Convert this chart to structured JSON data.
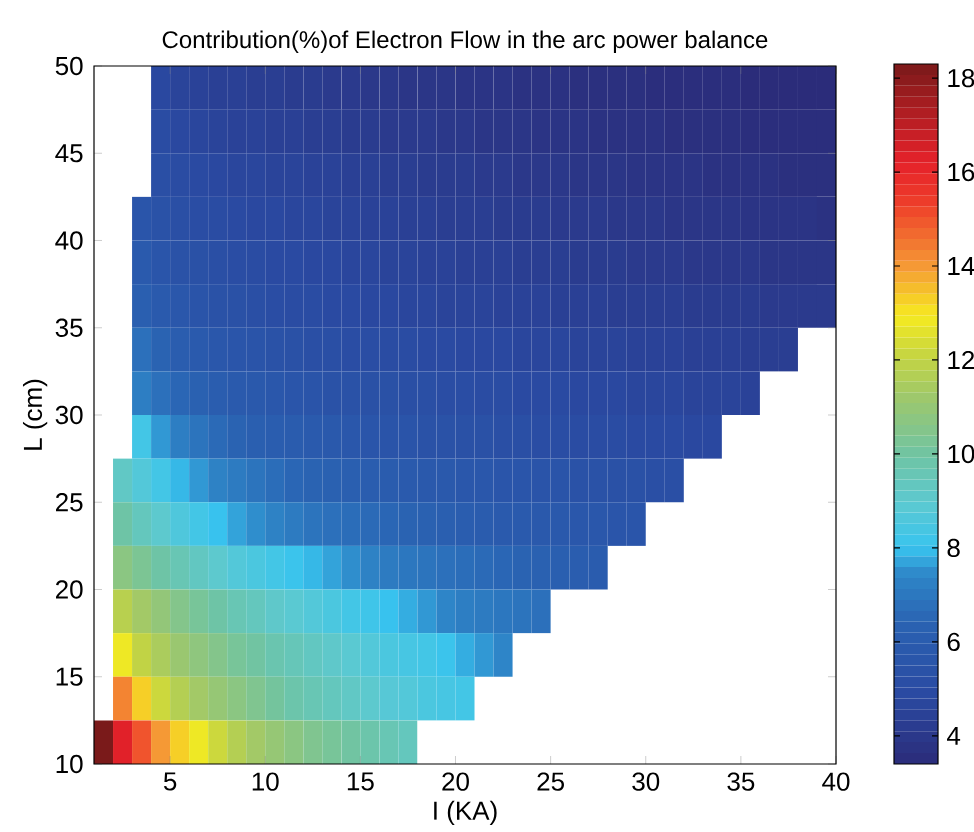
{
  "chart_data": {
    "type": "heatmap",
    "title": "Contribution(%)of Electron Flow in the arc power balance",
    "xlabel": "I (KA)",
    "ylabel": "L (cm)",
    "cells": [
      [
        null,
        null,
        null,
        4.8,
        4.6,
        4.5,
        4.4,
        4.4,
        4.3,
        4.3,
        4.2,
        4.2,
        4.1,
        4.1,
        4.0,
        4.0,
        3.9,
        3.9,
        3.9,
        3.8,
        3.8,
        3.8,
        3.7,
        3.7,
        3.7,
        3.6,
        3.6,
        3.6,
        3.6,
        3.5,
        3.5,
        3.5,
        3.5,
        3.5,
        3.4,
        3.4,
        3.4,
        3.4,
        3.4
      ],
      [
        null,
        null,
        null,
        5.0,
        4.8,
        4.7,
        4.6,
        4.5,
        4.5,
        4.4,
        4.4,
        4.3,
        4.3,
        4.2,
        4.2,
        4.1,
        4.1,
        4.1,
        4.0,
        4.0,
        3.9,
        3.9,
        3.9,
        3.8,
        3.8,
        3.8,
        3.7,
        3.7,
        3.7,
        3.7,
        3.6,
        3.6,
        3.6,
        3.6,
        3.5,
        3.5,
        3.5,
        3.5,
        3.5
      ],
      [
        null,
        null,
        null,
        5.2,
        5.0,
        4.9,
        4.8,
        4.7,
        4.7,
        4.6,
        4.6,
        4.5,
        4.5,
        4.4,
        4.4,
        4.3,
        4.3,
        4.2,
        4.2,
        4.2,
        4.1,
        4.1,
        4.0,
        4.0,
        4.0,
        3.9,
        3.9,
        3.9,
        3.8,
        3.8,
        3.8,
        3.8,
        3.7,
        3.7,
        3.7,
        3.7,
        3.6,
        3.6,
        3.6
      ],
      [
        null,
        null,
        5.6,
        5.4,
        5.2,
        5.1,
        5.0,
        4.9,
        4.8,
        4.8,
        4.7,
        4.7,
        4.6,
        4.6,
        4.5,
        4.5,
        4.4,
        4.4,
        4.3,
        4.3,
        4.3,
        4.2,
        4.2,
        4.2,
        4.1,
        4.1,
        4.1,
        4.0,
        4.0,
        4.0,
        3.9,
        3.9,
        3.9,
        3.9,
        3.8,
        3.8,
        3.8,
        3.8,
        3.7
      ],
      [
        null,
        null,
        5.9,
        5.6,
        5.4,
        5.3,
        5.2,
        5.1,
        5.0,
        4.9,
        4.9,
        4.8,
        4.8,
        4.7,
        4.7,
        4.6,
        4.6,
        4.5,
        4.5,
        4.4,
        4.4,
        4.4,
        4.3,
        4.3,
        4.3,
        4.2,
        4.2,
        4.2,
        4.1,
        4.1,
        4.1,
        4.0,
        4.0,
        4.0,
        4.0,
        3.9,
        3.9,
        3.9,
        3.9
      ],
      [
        null,
        null,
        6.2,
        5.9,
        5.7,
        5.5,
        5.4,
        5.3,
        5.2,
        5.1,
        5.0,
        5.0,
        4.9,
        4.9,
        4.8,
        4.8,
        4.7,
        4.7,
        4.6,
        4.6,
        4.6,
        4.5,
        4.5,
        4.5,
        4.4,
        4.4,
        4.4,
        4.3,
        4.3,
        4.3,
        4.3,
        4.2,
        4.2,
        4.2,
        4.2,
        4.1,
        4.1,
        4.1,
        4.1
      ],
      [
        null,
        null,
        6.8,
        6.4,
        6.1,
        5.9,
        5.7,
        5.6,
        5.5,
        5.4,
        5.3,
        5.2,
        5.2,
        5.1,
        5.1,
        5.0,
        5.0,
        4.9,
        4.9,
        4.8,
        4.8,
        4.8,
        4.7,
        4.7,
        4.7,
        4.6,
        4.6,
        4.6,
        4.5,
        4.5,
        4.5,
        4.4,
        4.4,
        4.4,
        4.3,
        4.3,
        4.3,
        null,
        null
      ],
      [
        null,
        null,
        7.2,
        6.8,
        6.5,
        6.3,
        6.1,
        5.9,
        5.8,
        5.7,
        5.6,
        5.5,
        5.4,
        5.4,
        5.3,
        5.3,
        5.2,
        5.2,
        5.1,
        5.1,
        5.0,
        5.0,
        4.9,
        4.9,
        4.9,
        4.8,
        4.8,
        4.8,
        4.7,
        4.7,
        4.7,
        4.6,
        4.6,
        4.6,
        4.5,
        null,
        null,
        null,
        null
      ],
      [
        null,
        null,
        8.3,
        7.6,
        7.2,
        6.9,
        6.6,
        6.4,
        6.2,
        6.1,
        6.0,
        5.9,
        5.8,
        5.7,
        5.6,
        5.5,
        5.5,
        5.4,
        5.4,
        5.3,
        5.3,
        5.2,
        5.2,
        5.1,
        5.1,
        5.0,
        5.0,
        5.0,
        4.9,
        4.9,
        4.9,
        4.8,
        4.8,
        null,
        null,
        null,
        null,
        null,
        null
      ],
      [
        null,
        9.2,
        8.7,
        8.3,
        7.9,
        7.6,
        7.3,
        7.1,
        6.9,
        6.7,
        6.5,
        6.4,
        6.3,
        6.2,
        6.1,
        6.0,
        5.9,
        5.8,
        5.8,
        5.7,
        5.7,
        5.6,
        5.6,
        5.5,
        5.5,
        5.4,
        5.4,
        5.3,
        5.3,
        5.2,
        5.2,
        null,
        null,
        null,
        null,
        null,
        null,
        null,
        null
      ],
      [
        null,
        9.9,
        9.4,
        9.0,
        8.6,
        8.3,
        8.0,
        7.7,
        7.5,
        7.3,
        7.1,
        6.9,
        6.8,
        6.7,
        6.6,
        6.5,
        6.4,
        6.3,
        6.2,
        6.1,
        6.0,
        5.9,
        5.9,
        5.8,
        5.8,
        5.7,
        5.7,
        5.6,
        5.6,
        null,
        null,
        null,
        null,
        null,
        null,
        null,
        null,
        null,
        null
      ],
      [
        null,
        10.7,
        10.3,
        9.9,
        9.6,
        9.3,
        9.0,
        8.7,
        8.5,
        8.3,
        8.1,
        7.9,
        7.7,
        7.5,
        7.3,
        7.1,
        7.0,
        6.9,
        6.8,
        6.7,
        6.6,
        6.5,
        6.4,
        6.3,
        6.2,
        6.1,
        6.0,
        null,
        null,
        null,
        null,
        null,
        null,
        null,
        null,
        null,
        null,
        null,
        null
      ],
      [
        null,
        11.8,
        11.3,
        10.9,
        10.5,
        10.2,
        9.9,
        9.6,
        9.4,
        9.1,
        8.9,
        8.7,
        8.5,
        8.3,
        8.2,
        8.0,
        7.8,
        7.6,
        7.4,
        7.2,
        7.1,
        7.0,
        6.9,
        6.8,
        null,
        null,
        null,
        null,
        null,
        null,
        null,
        null,
        null,
        null,
        null,
        null,
        null,
        null,
        null
      ],
      [
        null,
        12.8,
        12.0,
        11.5,
        11.1,
        10.8,
        10.5,
        10.2,
        10.0,
        9.7,
        9.5,
        9.3,
        9.1,
        8.9,
        8.7,
        8.5,
        8.4,
        8.3,
        8.1,
        7.8,
        7.6,
        7.4,
        null,
        null,
        null,
        null,
        null,
        null,
        null,
        null,
        null,
        null,
        null,
        null,
        null,
        null,
        null,
        null,
        null
      ],
      [
        null,
        14.3,
        13.3,
        12.2,
        11.7,
        11.3,
        11.0,
        10.7,
        10.4,
        10.1,
        9.8,
        9.6,
        9.4,
        9.2,
        9.0,
        8.8,
        8.7,
        8.5,
        8.4,
        8.3,
        null,
        null,
        null,
        null,
        null,
        null,
        null,
        null,
        null,
        null,
        null,
        null,
        null,
        null,
        null,
        null,
        null,
        null,
        null
      ],
      [
        18.3,
        16.3,
        15.0,
        14.0,
        13.3,
        12.8,
        12.2,
        11.7,
        11.3,
        11.0,
        10.7,
        10.4,
        10.2,
        10.0,
        9.8,
        9.6,
        9.4,
        null,
        null,
        null,
        null,
        null,
        null,
        null,
        null,
        null,
        null,
        null,
        null,
        null,
        null,
        null,
        null,
        null,
        null,
        null,
        null,
        null,
        null
      ]
    ],
    "xlim": [
      1,
      40
    ],
    "ylim": [
      10,
      50
    ],
    "xticks": [
      5,
      10,
      15,
      20,
      25,
      30,
      35,
      40
    ],
    "yticks": [
      10,
      15,
      20,
      25,
      30,
      35,
      40,
      45,
      50
    ],
    "clim": [
      3.4,
      18.3
    ],
    "cticks": [
      4,
      6,
      8,
      10,
      12,
      14,
      16,
      18
    ]
  }
}
